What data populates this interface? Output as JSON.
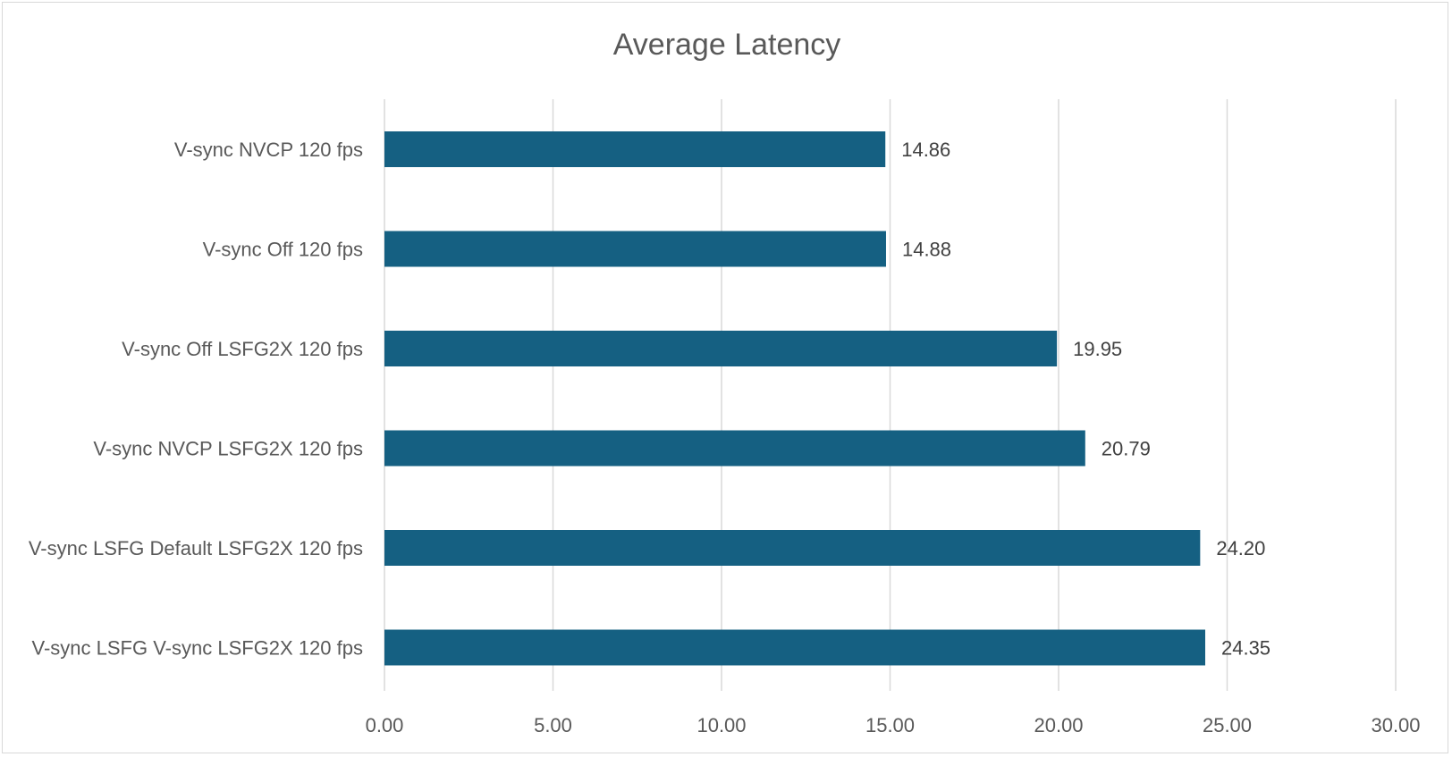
{
  "chart_data": {
    "type": "bar",
    "orientation": "horizontal",
    "title": "Average Latency",
    "xlabel": "",
    "ylabel": "",
    "categories": [
      "V-sync NVCP 120 fps",
      "V-sync Off 120 fps",
      "V-sync Off LSFG2X 120 fps",
      "V-sync NVCP LSFG2X 120 fps",
      "V-sync LSFG Default LSFG2X 120 fps",
      "V-sync LSFG V-sync LSFG2X 120 fps"
    ],
    "values": [
      14.86,
      14.88,
      19.95,
      20.79,
      24.2,
      24.35
    ],
    "value_labels": [
      "14.86",
      "14.88",
      "19.95",
      "20.79",
      "24.20",
      "24.35"
    ],
    "xlim": [
      0,
      30
    ],
    "ticks": [
      "0.00",
      "5.00",
      "10.00",
      "15.00",
      "20.00",
      "25.00",
      "30.00"
    ],
    "tick_values": [
      0,
      5,
      10,
      15,
      20,
      25,
      30
    ],
    "grid": true,
    "legend": "none",
    "bar_color": "#156082"
  }
}
